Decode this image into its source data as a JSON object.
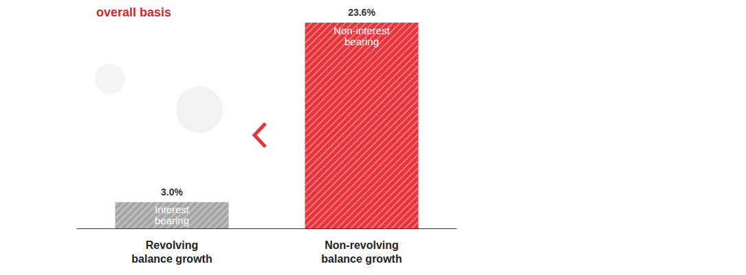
{
  "chart_data": {
    "type": "bar",
    "title": "overall basis",
    "categories": [
      "Revolving balance growth",
      "Non-revolving balance growth"
    ],
    "values": [
      3.0,
      23.6
    ],
    "value_labels": [
      "3.0%",
      "23.6%"
    ],
    "annotations": [
      "Interest bearing",
      "Non-interest bearing"
    ],
    "colors": [
      "#a6a6a6",
      "#e8333b"
    ],
    "ylim": [
      0,
      23.6
    ],
    "grid": false,
    "data_labels": true,
    "tick_labels": "x"
  }
}
